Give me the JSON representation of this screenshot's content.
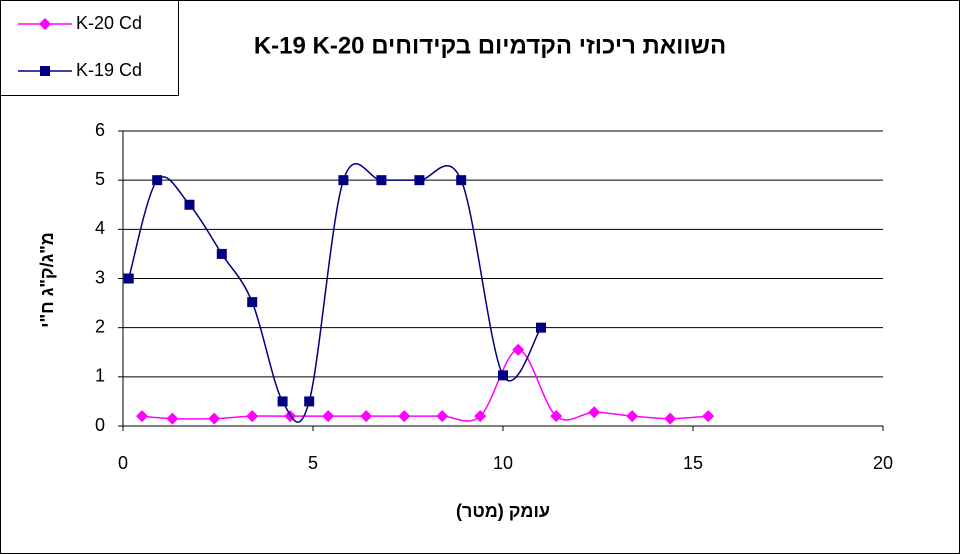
{
  "chart_data": {
    "type": "scatter",
    "smooth": true,
    "title": "השוואת ריכוזי הקדמיום בקידוחים K-19 K-20",
    "x_label": "עומק (מטר)",
    "y_label": "מ\"ג/ק\"ג ח\"י",
    "xlim": [
      0,
      20
    ],
    "xticks": [
      0,
      5,
      10,
      15,
      20
    ],
    "ylim": [
      0,
      6
    ],
    "yticks": [
      0,
      1,
      2,
      3,
      4,
      5,
      6
    ],
    "grid": true,
    "legend": "top-left",
    "series": [
      {
        "name": "K-20 Cd",
        "color": "#ff00ff",
        "marker": "diamond",
        "x": [
          0.5,
          1.3,
          2.4,
          3.4,
          4.4,
          5.4,
          6.4,
          7.4,
          8.4,
          9.4,
          10.4,
          11.4,
          12.4,
          13.4,
          14.4,
          15.4
        ],
        "values": [
          0.2,
          0.15,
          0.15,
          0.2,
          0.2,
          0.2,
          0.2,
          0.2,
          0.2,
          0.2,
          1.55,
          0.2,
          0.28,
          0.2,
          0.15,
          0.2
        ]
      },
      {
        "name": "K-19 Cd",
        "color": "#000080",
        "marker": "square",
        "x": [
          0.15,
          0.9,
          1.75,
          2.6,
          3.4,
          4.2,
          4.9,
          5.8,
          6.8,
          7.8,
          8.9,
          10.0,
          11.0
        ],
        "values": [
          3,
          5,
          4.5,
          3.5,
          2.52,
          0.5,
          0.5,
          5,
          5,
          5,
          5,
          1.03,
          2
        ]
      }
    ]
  }
}
